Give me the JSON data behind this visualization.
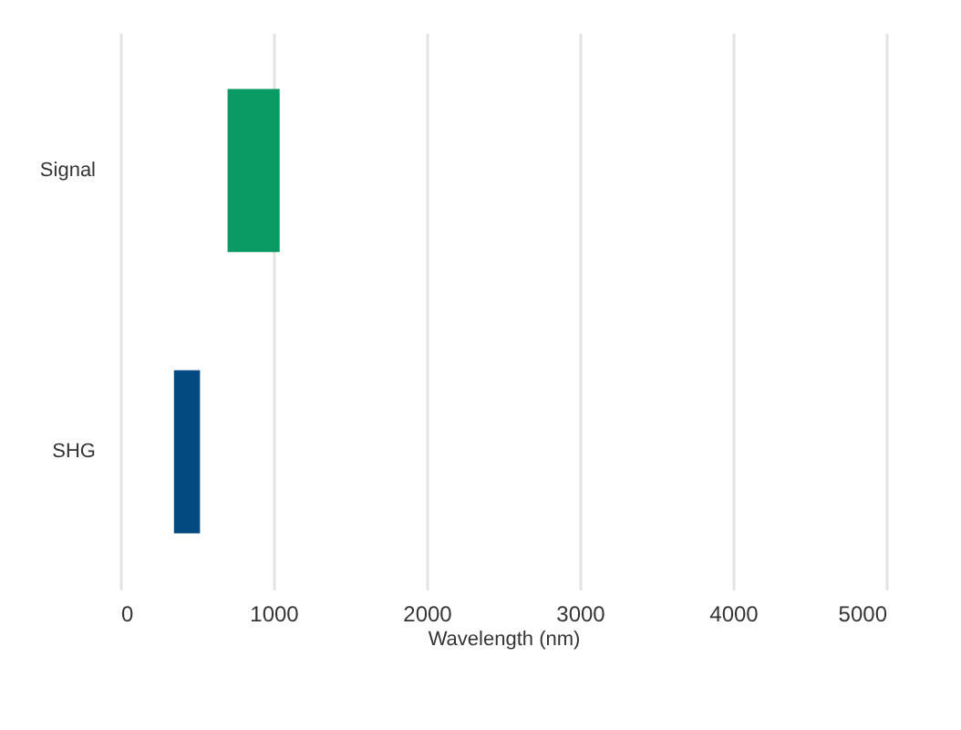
{
  "chart_data": {
    "type": "bar",
    "orientation": "horizontal",
    "categories": [
      "Signal",
      "SHG"
    ],
    "base": [
      700,
      350
    ],
    "values": [
      340,
      170
    ],
    "colors": [
      "#0a9a63",
      "#034a80"
    ],
    "xlabel": "Wavelength (nm)",
    "xlim": [
      0,
      5000
    ],
    "xticks": [
      0,
      1000,
      2000,
      3000,
      4000,
      5000
    ],
    "grid": "x"
  }
}
